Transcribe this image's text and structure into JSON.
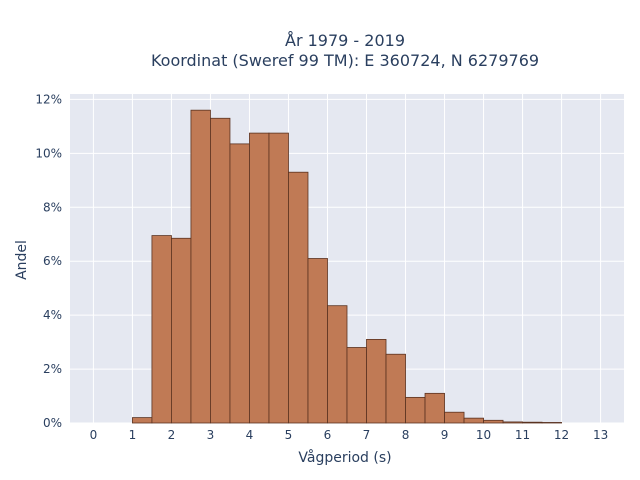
{
  "chart_data": {
    "type": "bar",
    "title_line1": "År 1979 - 2019",
    "title_line2": "Koordinat (Sweref 99 TM): E 360724, N 6279769",
    "xlabel": "Vågperiod (s)",
    "ylabel": "Andel",
    "bin_width": 0.5,
    "bin_starts": [
      1.0,
      1.5,
      2.0,
      2.5,
      3.0,
      3.5,
      4.0,
      4.5,
      5.0,
      5.5,
      6.0,
      6.5,
      7.0,
      7.5,
      8.0,
      8.5,
      9.0,
      9.5,
      10.0,
      10.5,
      11.0,
      11.5
    ],
    "values": [
      0.2,
      6.95,
      6.85,
      11.6,
      11.3,
      10.35,
      10.75,
      10.75,
      9.3,
      6.1,
      4.35,
      2.8,
      3.1,
      2.55,
      0.95,
      1.1,
      0.4,
      0.18,
      0.1,
      0.04,
      0.03,
      0.02
    ],
    "xlim": [
      -0.6,
      13.6
    ],
    "ylim": [
      0,
      12.2
    ],
    "x_ticks": [
      "0",
      "1",
      "2",
      "3",
      "4",
      "5",
      "6",
      "7",
      "8",
      "9",
      "10",
      "11",
      "12",
      "13"
    ],
    "y_ticks": [
      "0%",
      "2%",
      "4%",
      "6%",
      "8%",
      "10%",
      "12%"
    ],
    "bar_color": "#c07a55",
    "bar_edge_color": "#5a3220",
    "plot_bg": "#e5e8f1",
    "grid": true
  }
}
